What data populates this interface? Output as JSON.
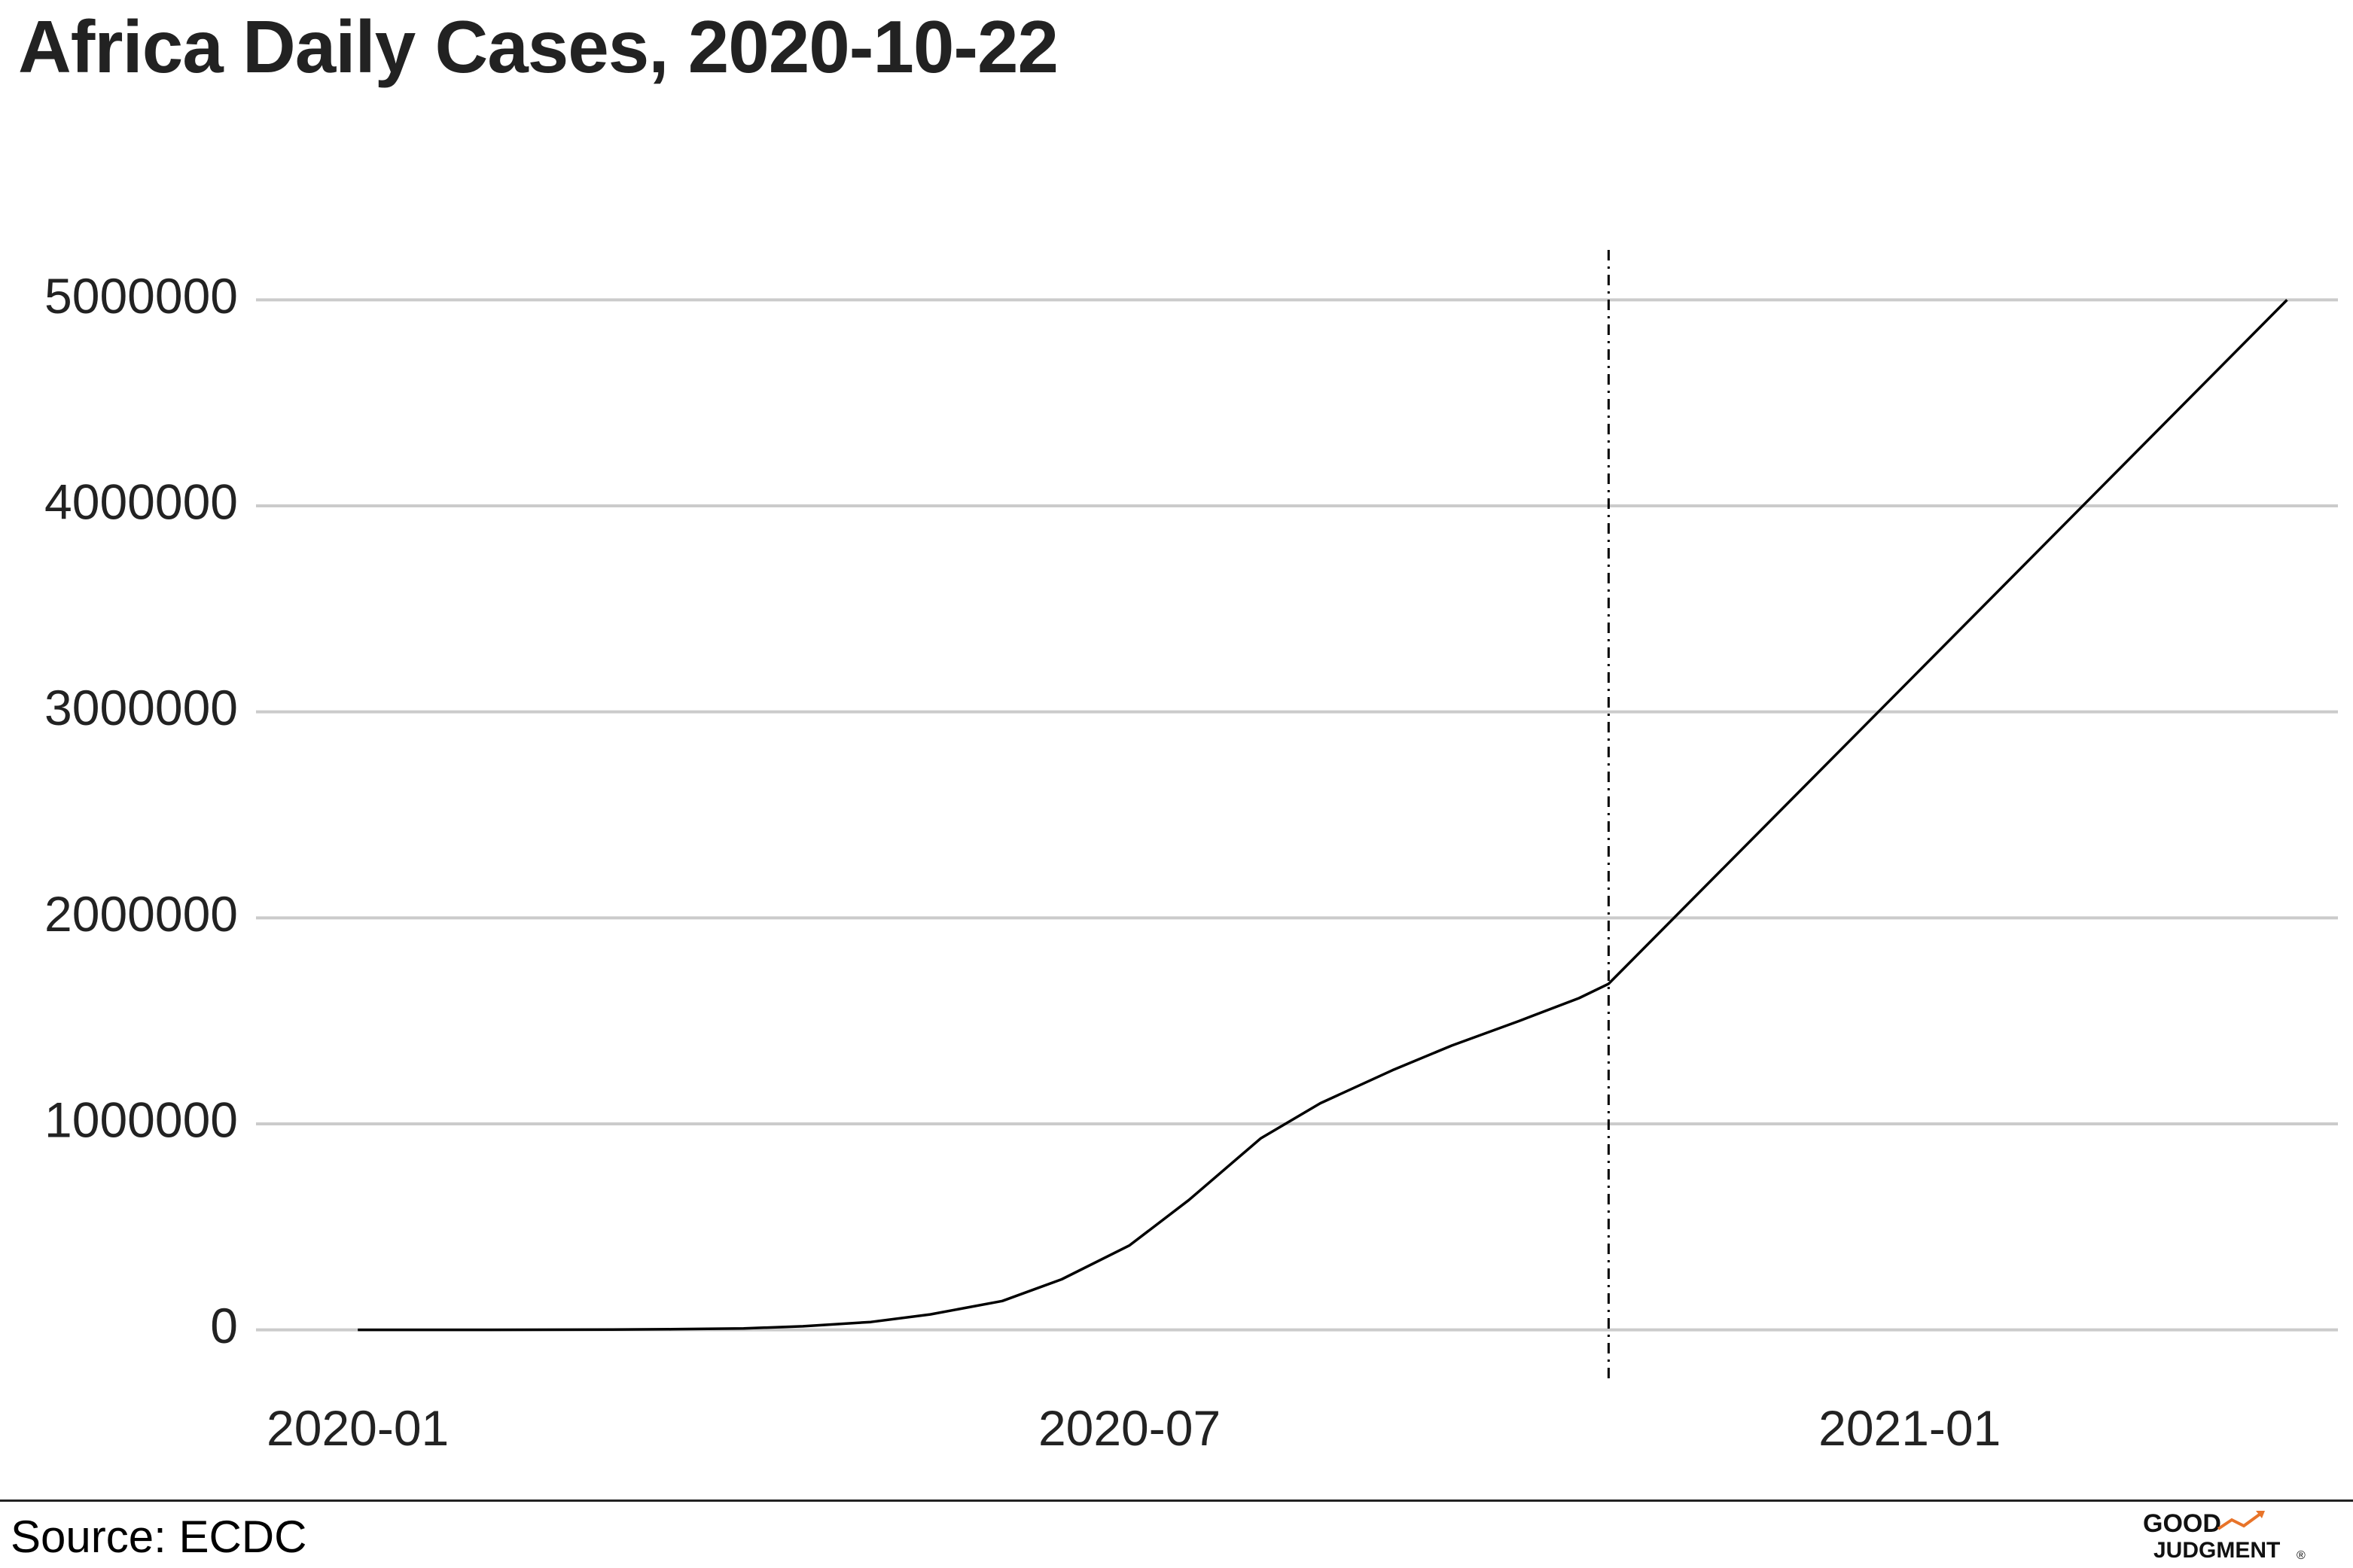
{
  "header": {
    "title": "Africa Daily Cases, 2020-10-22"
  },
  "footer": {
    "source": "Source: ECDC",
    "logo": "GOOD JUDGMENT®"
  },
  "chart_data": {
    "type": "line",
    "title": "Africa Daily Cases, 2020-10-22",
    "xlabel": "",
    "ylabel": "",
    "xlim": [
      "2019-12-08",
      "2021-04-12"
    ],
    "ylim": [
      -250000,
      5250000
    ],
    "x_ticks": [
      "2020-01",
      "2020-07",
      "2021-01"
    ],
    "y_ticks": [
      "0",
      "1000000",
      "2000000",
      "3000000",
      "4000000",
      "5000000"
    ],
    "grid": "horizontal",
    "legend": "none",
    "colors": {
      "line": "#000000",
      "grid": "#cbcbcb",
      "marker_line": "#000000"
    },
    "reference_line": {
      "x": "2020-10-22",
      "style": "dash-dot"
    },
    "series": [
      {
        "values": [
          [
            "2020-01-01",
            0
          ],
          [
            "2020-02-01",
            0
          ],
          [
            "2020-03-01",
            1000
          ],
          [
            "2020-03-15",
            3000
          ],
          [
            "2020-04-01",
            7000
          ],
          [
            "2020-04-15",
            17000
          ],
          [
            "2020-05-01",
            38000
          ],
          [
            "2020-05-15",
            75000
          ],
          [
            "2020-06-01",
            140000
          ],
          [
            "2020-06-15",
            245000
          ],
          [
            "2020-07-01",
            410000
          ],
          [
            "2020-07-15",
            630000
          ],
          [
            "2020-08-01",
            930000
          ],
          [
            "2020-08-15",
            1100000
          ],
          [
            "2020-09-01",
            1260000
          ],
          [
            "2020-09-15",
            1380000
          ],
          [
            "2020-10-01",
            1500000
          ],
          [
            "2020-10-15",
            1610000
          ],
          [
            "2020-10-22",
            1680000
          ],
          [
            "2021-03-31",
            5000000
          ]
        ]
      }
    ]
  }
}
